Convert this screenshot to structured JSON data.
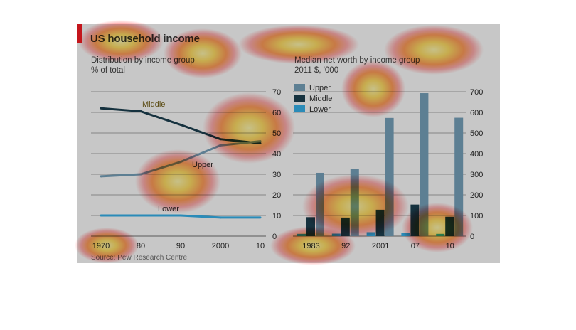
{
  "figure": {
    "title": "US household income",
    "source": "Source: Pew Research Centre"
  },
  "colors": {
    "upper": "#5d7f93",
    "middle": "#16323f",
    "lower": "#2a8bb8",
    "grid": "#6f6f6f",
    "accent": "#c4161c"
  },
  "chart_data": [
    {
      "type": "line",
      "title": "Distribution by income group",
      "subtitle": "% of total",
      "x": [
        1970,
        1980,
        1990,
        2000,
        2010
      ],
      "x_tick_labels": [
        "1970",
        "80",
        "90",
        "2000",
        "10"
      ],
      "y_ticks": [
        "0",
        "10",
        "20",
        "30",
        "40",
        "50",
        "60",
        "70"
      ],
      "ylim": [
        0,
        70
      ],
      "series": [
        {
          "name": "Middle",
          "values": [
            62,
            60.5,
            54,
            47,
            45
          ]
        },
        {
          "name": "Upper",
          "values": [
            29,
            30,
            36,
            44,
            46
          ]
        },
        {
          "name": "Lower",
          "values": [
            10,
            10,
            10,
            9,
            9
          ]
        }
      ]
    },
    {
      "type": "bar",
      "title": "Median net worth by income group",
      "subtitle": "2011 $, '000",
      "categories": [
        "1983",
        "92",
        "2001",
        "07",
        "10"
      ],
      "y_ticks": [
        "0",
        "100",
        "200",
        "300",
        "400",
        "500",
        "600",
        "700"
      ],
      "ylim": [
        0,
        700
      ],
      "series": [
        {
          "name": "Upper",
          "values": [
            307,
            326,
            573,
            693,
            574
          ]
        },
        {
          "name": "Middle",
          "values": [
            92,
            90,
            128,
            153,
            94
          ]
        },
        {
          "name": "Lower",
          "values": [
            11,
            12,
            19,
            17,
            11
          ]
        }
      ],
      "legend": "top-left"
    }
  ]
}
